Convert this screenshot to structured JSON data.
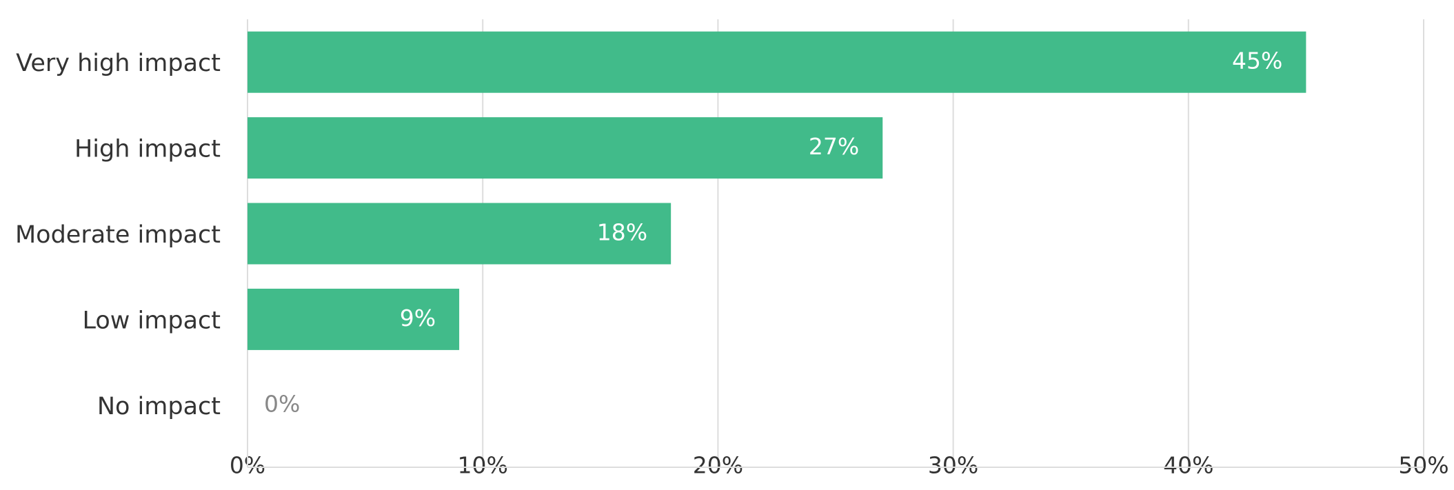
{
  "chart_data": {
    "type": "bar",
    "orientation": "horizontal",
    "categories": [
      "Very high impact",
      "High impact",
      "Moderate impact",
      "Low impact",
      "No impact"
    ],
    "values": [
      45,
      27,
      18,
      9,
      0
    ],
    "value_labels": [
      "45%",
      "27%",
      "18%",
      "9%",
      "0%"
    ],
    "color": "#41bb8a",
    "xlim": [
      0,
      50
    ],
    "xticks": [
      {
        "value": 0,
        "label": "0%"
      },
      {
        "value": 10,
        "label": "10%"
      },
      {
        "value": 20,
        "label": "20%"
      },
      {
        "value": 30,
        "label": "30%"
      },
      {
        "value": 40,
        "label": "40%"
      },
      {
        "value": 50,
        "label": "50%"
      }
    ],
    "grid": true
  }
}
